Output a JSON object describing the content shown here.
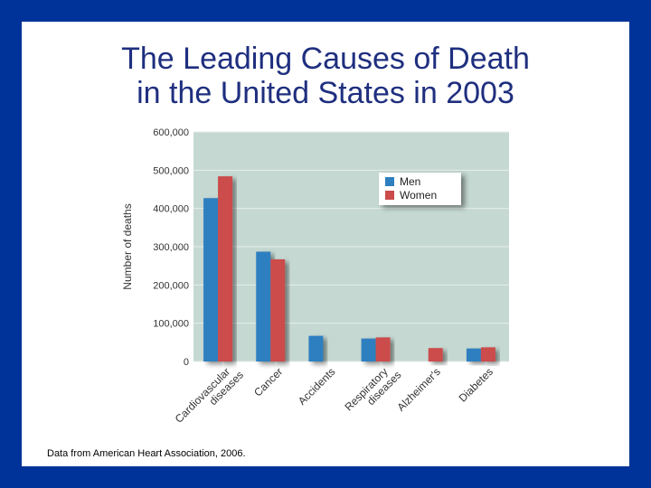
{
  "slide": {
    "title_line1": "The Leading Causes of Death",
    "title_line2": "in the United States in 2003",
    "source": "Data from American Heart Association, 2006."
  },
  "colors": {
    "background": "#003399",
    "plot_bg": "#c5d8d2",
    "men": "#2e7fc0",
    "women": "#cc4b4b",
    "title": "#1f2f7f"
  },
  "chart_data": {
    "type": "bar",
    "categories": [
      [
        "Cardiovascular",
        "diseases"
      ],
      [
        "Cancer"
      ],
      [
        "Accidents"
      ],
      [
        "Respiratory",
        "diseases"
      ],
      [
        "Alzheimer's"
      ],
      [
        "Diabetes"
      ]
    ],
    "series": [
      {
        "name": "Men",
        "values": [
          427000,
          287000,
          67000,
          60000,
          0,
          34000
        ]
      },
      {
        "name": "Women",
        "values": [
          484000,
          267000,
          0,
          63000,
          35000,
          37000
        ]
      }
    ],
    "ylabel": "Number of deaths",
    "ylim": [
      0,
      600000
    ],
    "yticks": [
      "0",
      "100,000",
      "200,000",
      "300,000",
      "400,000",
      "500,000",
      "600,000"
    ],
    "grid": true,
    "legend": "top-right"
  }
}
